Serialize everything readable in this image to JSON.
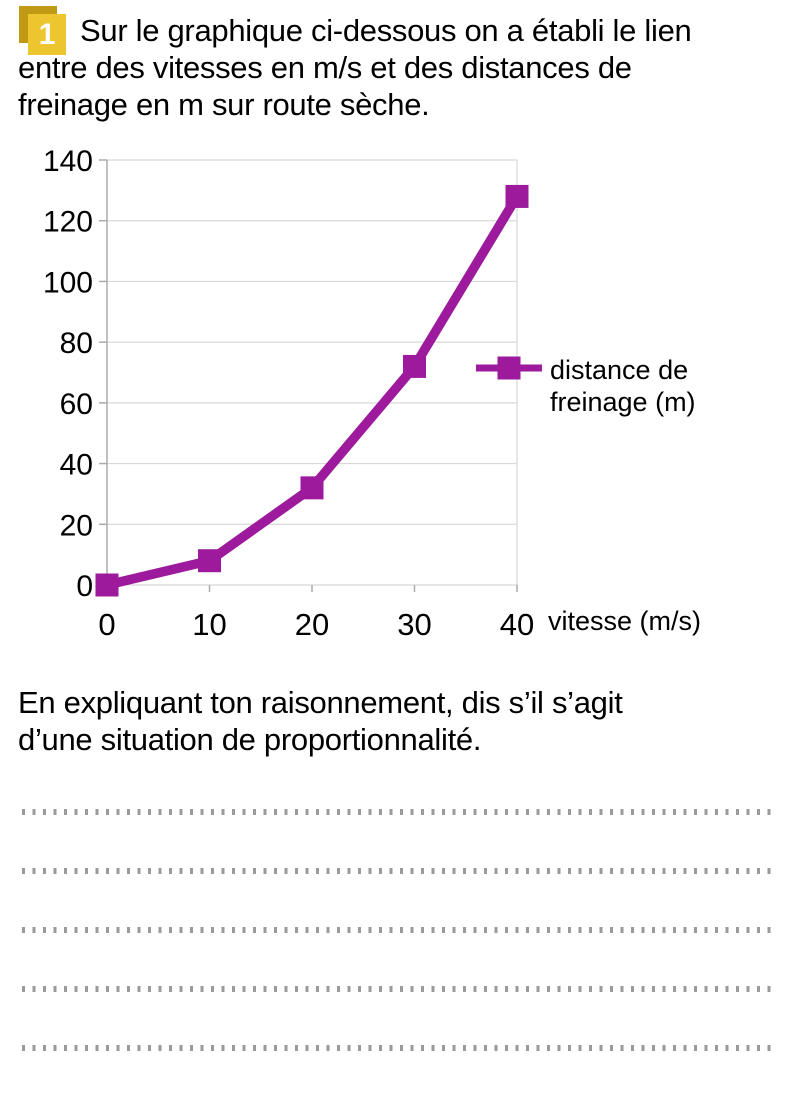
{
  "exercise": {
    "number": "1",
    "statement_lines": [
      "Sur le graphique ci-dessous on a établi le lien",
      "entre des vitesses en m/s et des distances de",
      "freinage en m sur route sèche."
    ]
  },
  "question": {
    "lines": [
      "En expliquant ton raisonnement, dis s’il s’agit",
      "d’une situation de proportionnalité."
    ]
  },
  "answer_area": {
    "line_count": 5
  },
  "colors": {
    "series": "#9C1A9B",
    "grid": "#d8d8d8",
    "axis": "#ababab",
    "text": "#000000",
    "badge_back": "#C09A14",
    "badge_front": "#EDC62F",
    "dotted_line": "#9a9a9a"
  },
  "chart_data": {
    "type": "line",
    "x": [
      0,
      10,
      20,
      30,
      40
    ],
    "series": [
      {
        "name": "distance de freinage (m)",
        "values": [
          0,
          8,
          32,
          72,
          128
        ]
      }
    ],
    "title": "",
    "xlabel": "vitesse (m/s)",
    "ylabel": "",
    "xlim": [
      0,
      40
    ],
    "ylim": [
      0,
      140
    ],
    "x_ticks": [
      0,
      10,
      20,
      30,
      40
    ],
    "y_ticks": [
      0,
      20,
      40,
      60,
      80,
      100,
      120,
      140
    ],
    "grid": true,
    "marker": "square",
    "legend": {
      "position": "right",
      "label": "distance de freinage (m)",
      "lines": [
        "distance de",
        "freinage (m)"
      ]
    }
  }
}
